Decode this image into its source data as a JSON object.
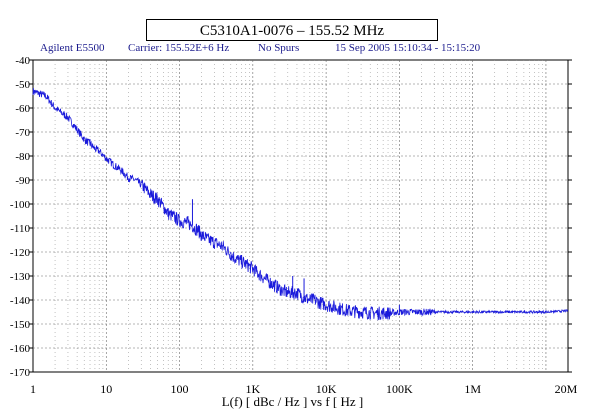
{
  "chart_data": {
    "type": "line",
    "title": "C5310A1-0076 – 155.52 MHz",
    "header": {
      "instrument": "Agilent E5500",
      "carrier": "Carrier: 155.52E+6 Hz",
      "spurs": "No Spurs",
      "date": "15 Sep 2005  15:10:34 - 15:15:20"
    },
    "xlabel": "L(f)  [ dBc / Hz ]  vs  f  [ Hz ]",
    "ylabel": "",
    "x_scale": "log",
    "xlim": [
      1,
      20000000
    ],
    "ylim": [
      -170,
      -40
    ],
    "x_ticks": [
      {
        "value": 1,
        "label": "1"
      },
      {
        "value": 10,
        "label": "10"
      },
      {
        "value": 100,
        "label": "100"
      },
      {
        "value": 1000,
        "label": "1K"
      },
      {
        "value": 10000,
        "label": "10K"
      },
      {
        "value": 100000,
        "label": "100K"
      },
      {
        "value": 1000000,
        "label": "1M"
      },
      {
        "value": 20000000,
        "label": "20M"
      }
    ],
    "y_ticks": [
      -40,
      -50,
      -60,
      -70,
      -80,
      -90,
      -100,
      -110,
      -120,
      -130,
      -140,
      -150,
      -160,
      -170
    ],
    "grid": true,
    "series_color": "#1a1adb",
    "series": [
      {
        "x": [
          1,
          1.5,
          2,
          3,
          4,
          5,
          6,
          7,
          8,
          10,
          13,
          16,
          20,
          25,
          30,
          40,
          50,
          60,
          70,
          80,
          100,
          130,
          150,
          160,
          180,
          200,
          250,
          300,
          400,
          500,
          600,
          700,
          800,
          1000,
          1300,
          1600,
          2000,
          2500,
          3000,
          4000,
          5000,
          6000,
          7000,
          8000,
          10000,
          15000,
          20000,
          30000,
          50000,
          70000,
          100000,
          150000,
          200000,
          300000,
          500000,
          700000,
          1000000,
          2000000,
          3000000,
          5000000,
          10000000,
          20000000
        ],
        "y": [
          -53,
          -55,
          -60,
          -64,
          -69,
          -73,
          -75,
          -77,
          -78,
          -81,
          -84,
          -86,
          -89,
          -90,
          -92,
          -96,
          -98,
          -101,
          -104,
          -105,
          -107,
          -108,
          -109,
          -110,
          -111,
          -113,
          -115,
          -116,
          -118,
          -121,
          -123,
          -124,
          -125,
          -127,
          -130,
          -132,
          -134,
          -136,
          -137,
          -137,
          -139,
          -140,
          -140,
          -141,
          -142,
          -143.5,
          -144.5,
          -145,
          -145.5,
          -145.5,
          -145,
          -145,
          -145,
          -145,
          -145,
          -145,
          -145,
          -145,
          -145,
          -145,
          -145,
          -144.5
        ]
      }
    ],
    "spurs_marked": [
      {
        "x": 6,
        "y": -73
      },
      {
        "x": 150,
        "y": -98
      },
      {
        "x": 130,
        "y": -105
      },
      {
        "x": 500,
        "y": -120
      },
      {
        "x": 3500,
        "y": -130
      },
      {
        "x": 5000,
        "y": -131
      },
      {
        "x": 100000,
        "y": -142
      }
    ]
  }
}
